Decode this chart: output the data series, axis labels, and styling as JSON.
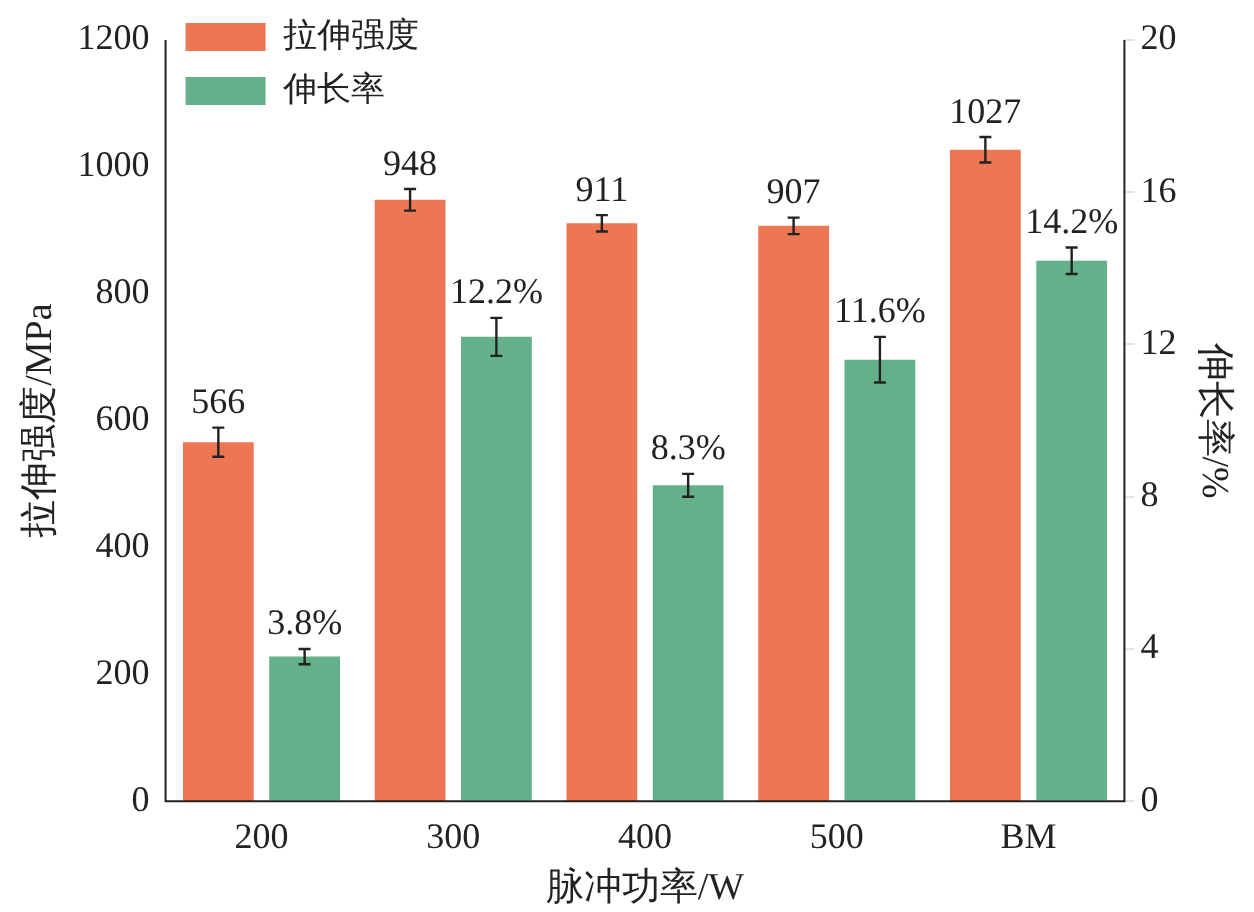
{
  "chart_data": {
    "type": "bar",
    "xlabel": "脉冲功率/W",
    "ylabel": "拉伸强度/MPa",
    "y2label": "伸长率/%",
    "categories": [
      "200",
      "300",
      "400",
      "500",
      "BM"
    ],
    "series": [
      {
        "name": "拉伸强度",
        "color": "#ee7753",
        "values": [
          566,
          948,
          911,
          907,
          1027
        ],
        "errors": [
          23,
          17,
          13,
          13,
          20
        ],
        "value_labels": [
          "566",
          "948",
          "911",
          "907",
          "1027"
        ]
      },
      {
        "name": "伸长率",
        "color": "#64b08a",
        "axis": "y2",
        "values": [
          3.8,
          12.2,
          8.3,
          11.6,
          14.2
        ],
        "errors": [
          0.2,
          0.5,
          0.3,
          0.6,
          0.35
        ],
        "value_labels": [
          "3.8%",
          "12.2%",
          "8.3%",
          "11.6%",
          "14.2%"
        ]
      }
    ],
    "ylim": [
      0,
      1200
    ],
    "yticks": [
      0,
      200,
      400,
      600,
      800,
      1000,
      1200
    ],
    "y2lim": [
      0,
      20
    ],
    "y2ticks": [
      0,
      4,
      8,
      12,
      16,
      20
    ],
    "legend": "top left",
    "grid": false
  }
}
